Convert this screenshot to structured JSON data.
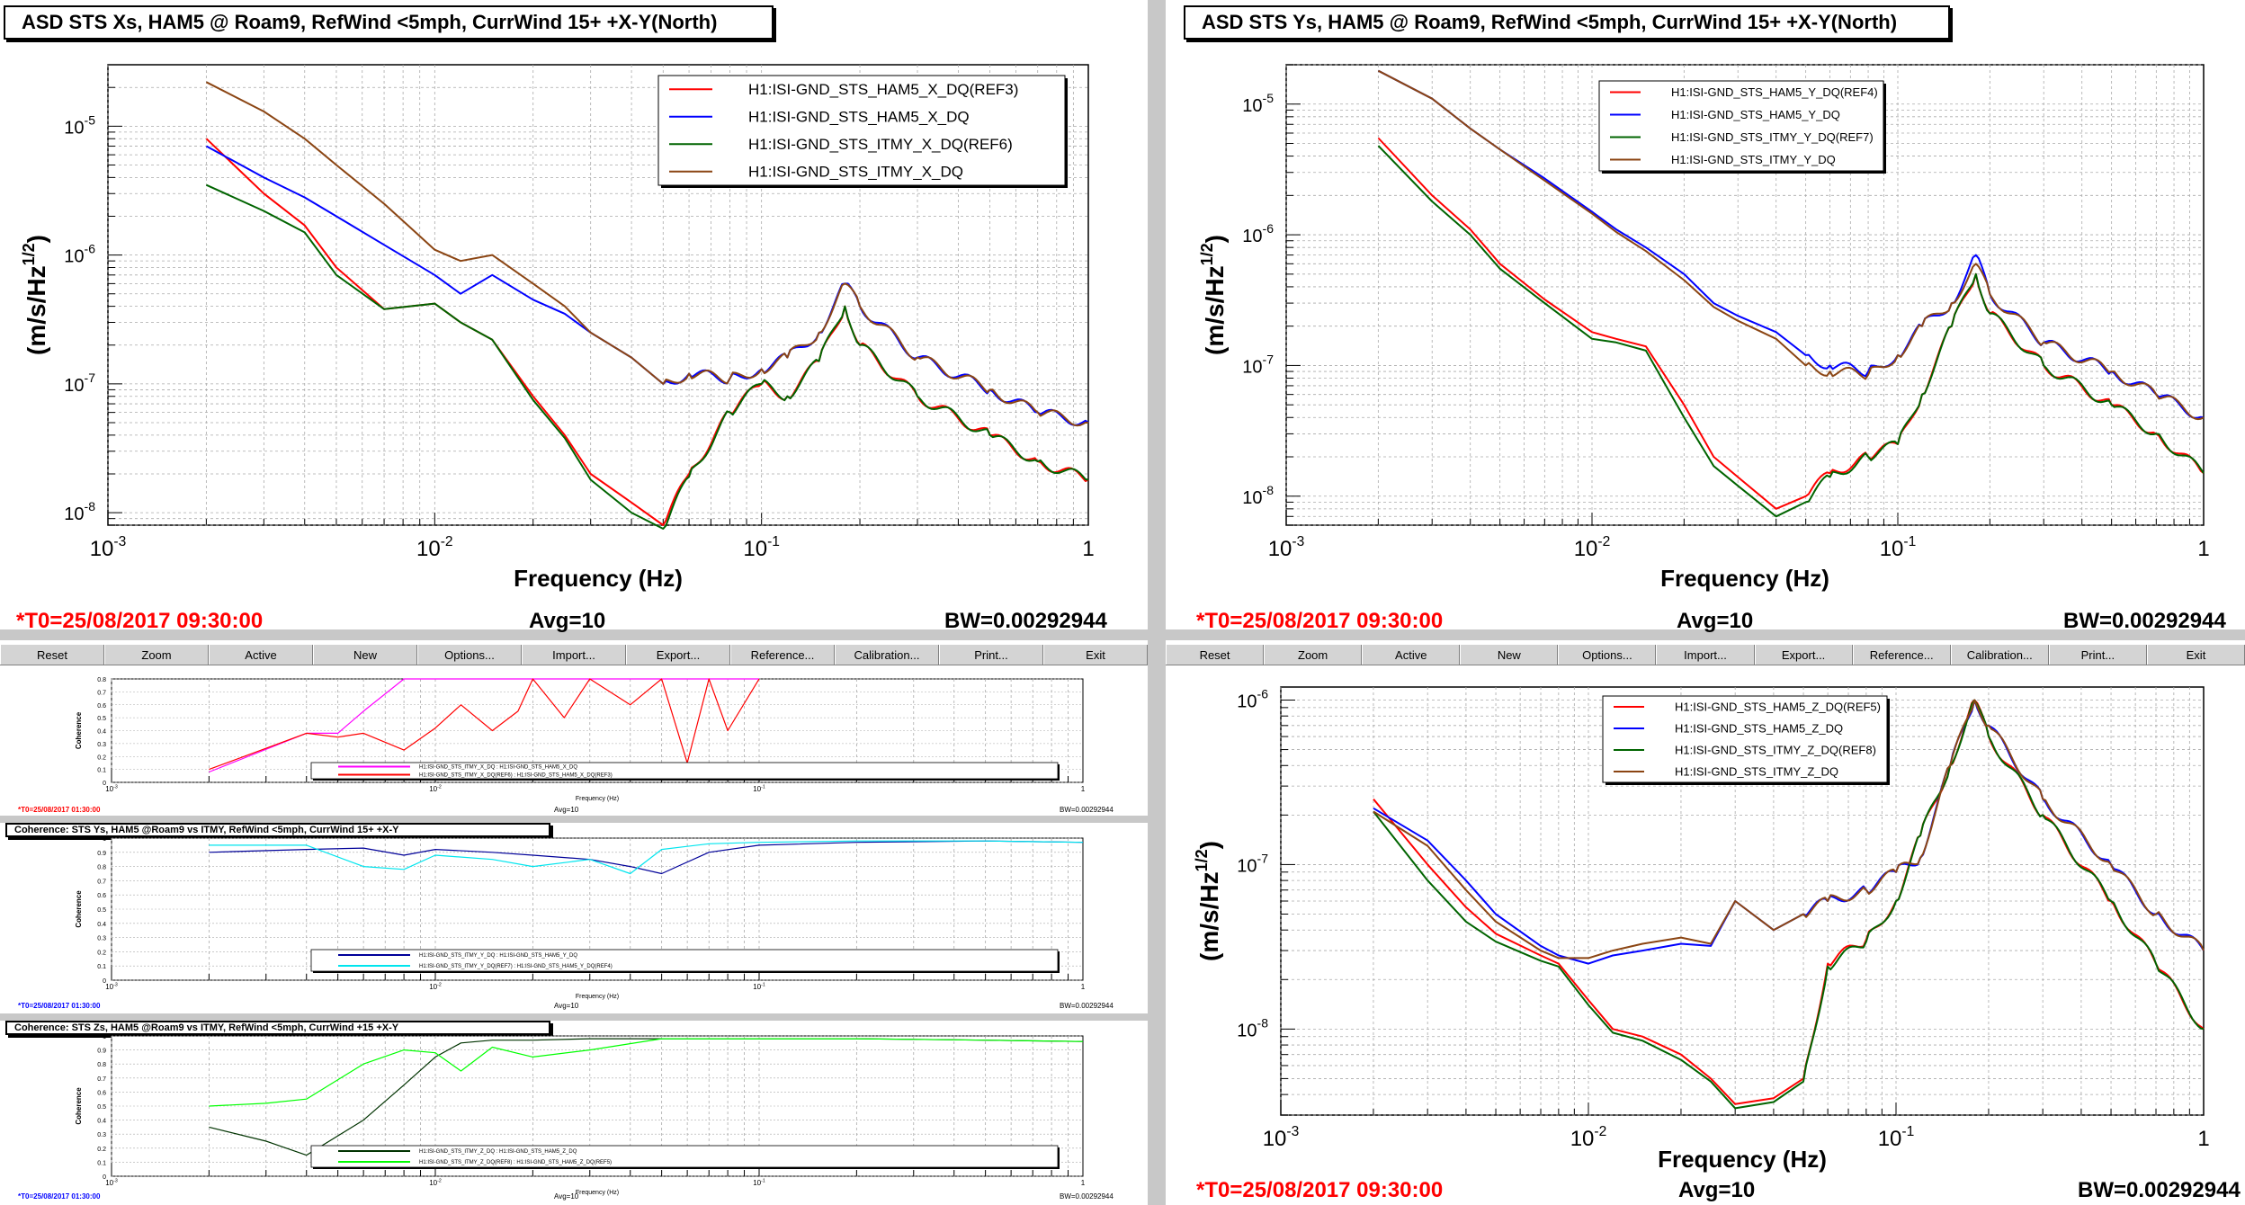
{
  "toolbar": {
    "buttons": [
      "Reset",
      "Zoom",
      "Active",
      "New",
      "Options...",
      "Import...",
      "Export...",
      "Reference...",
      "Calibration...",
      "Print...",
      "Exit"
    ]
  },
  "colors": {
    "red": "#ff0000",
    "blue": "#0000ff",
    "green": "#006400",
    "brown": "#8b4513",
    "magenta": "#ff00ff",
    "cyan": "#00e5ee",
    "lime": "#00ff00",
    "darkblue": "#000099"
  },
  "footer": {
    "t0_main": "*T0=25/08/2017 09:30:00",
    "avg": "Avg=10",
    "bw": "BW=0.00292944",
    "t0_small": "*T0=25/08/2017 01:30:00",
    "bw_small": "BW=0.00292944"
  },
  "panels": {
    "xs": {
      "title": "ASD STS Xs, HAM5 @ Roam9, RefWind <5mph, CurrWind 15+ +X-Y(North)",
      "xlabel": "Frequency (Hz)",
      "ylabel": "(m/s/Hz^1/2)",
      "legend": [
        "H1:ISI-GND_STS_HAM5_X_DQ(REF3)",
        "H1:ISI-GND_STS_HAM5_X_DQ",
        "H1:ISI-GND_STS_ITMY_X_DQ(REF6)",
        "H1:ISI-GND_STS_ITMY_X_DQ"
      ]
    },
    "ys": {
      "title": "ASD STS Ys, HAM5 @ Roam9, RefWind <5mph, CurrWind 15+ +X-Y(North)",
      "xlabel": "Frequency (Hz)",
      "ylabel": "(m/s/Hz^1/2)",
      "legend": [
        "H1:ISI-GND_STS_HAM5_Y_DQ(REF4)",
        "H1:ISI-GND_STS_HAM5_Y_DQ",
        "H1:ISI-GND_STS_ITMY_Y_DQ(REF7)",
        "H1:ISI-GND_STS_ITMY_Y_DQ"
      ]
    },
    "zs": {
      "title": "",
      "xlabel": "Frequency (Hz)",
      "ylabel": "(m/s/Hz^1/2)",
      "legend": [
        "H1:ISI-GND_STS_HAM5_Z_DQ(REF5)",
        "H1:ISI-GND_STS_HAM5_Z_DQ",
        "H1:ISI-GND_STS_ITMY_Z_DQ(REF8)",
        "H1:ISI-GND_STS_ITMY_Z_DQ"
      ]
    },
    "coh_x": {
      "ylabel": "Coherence",
      "xlabel": "Frequency (Hz)",
      "legend": [
        "H1:ISI-GND_STS_ITMY_X_DQ : H1:ISI-GND_STS_HAM5_X_DQ",
        "H1:ISI-GND_STS_ITMY_X_DQ(REF6) : H1:ISI-GND_STS_HAM5_X_DQ(REF3)"
      ]
    },
    "coh_y": {
      "title": "Coherence: STS Ys, HAM5 @Roam9 vs ITMY, RefWind <5mph, CurrWind 15+ +X-Y",
      "ylabel": "Coherence",
      "xlabel": "Frequency (Hz)",
      "legend": [
        "H1:ISI-GND_STS_ITMY_Y_DQ : H1:ISI-GND_STS_HAM5_Y_DQ",
        "H1:ISI-GND_STS_ITMY_Y_DQ(REF7) : H1:ISI-GND_STS_HAM5_Y_DQ(REF4)"
      ]
    },
    "coh_z": {
      "title": "Coherence: STS Zs, HAM5 @Roam9 vs ITMY, RefWind <5mph, CurrWind +15 +X-Y",
      "ylabel": "Coherence",
      "xlabel": "Frequency (Hz)",
      "legend": [
        "H1:ISI-GND_STS_ITMY_Z_DQ : H1:ISI-GND_STS_HAM5_Z_DQ",
        "H1:ISI-GND_STS_ITMY_Z_DQ(REF8) : H1:ISI-GND_STS_HAM5_Z_DQ(REF5)"
      ]
    }
  },
  "chart_data": [
    {
      "id": "xs",
      "type": "line",
      "xscale": "log",
      "yscale": "log",
      "xlim": [
        0.001,
        1
      ],
      "ylim": [
        8e-09,
        3e-05
      ],
      "x": [
        0.002,
        0.003,
        0.004,
        0.005,
        0.007,
        0.01,
        0.012,
        0.015,
        0.02,
        0.025,
        0.03,
        0.04,
        0.05,
        0.06,
        0.08,
        0.1,
        0.12,
        0.15,
        0.18,
        0.2,
        0.3,
        0.5,
        0.7,
        1
      ],
      "yticks": [
        1e-08,
        1e-07,
        1e-06,
        1e-05
      ],
      "series": [
        {
          "name": "H1:ISI-GND_STS_HAM5_X_DQ(REF3)",
          "color": "red",
          "values": [
            8e-06,
            3e-06,
            1.7e-06,
            8e-07,
            3.8e-07,
            4.2e-07,
            3e-07,
            2.2e-07,
            8e-08,
            4e-08,
            2e-08,
            1.2e-08,
            8e-09,
            2e-08,
            6e-08,
            1e-07,
            8e-08,
            1.5e-07,
            4e-07,
            2e-07,
            8e-08,
            4e-08,
            2.5e-08,
            1.8e-08
          ]
        },
        {
          "name": "H1:ISI-GND_STS_HAM5_X_DQ",
          "color": "blue",
          "values": [
            7e-06,
            4e-06,
            2.8e-06,
            2e-06,
            1.2e-06,
            7e-07,
            5e-07,
            7e-07,
            4.5e-07,
            3.5e-07,
            2.5e-07,
            1.6e-07,
            1e-07,
            1.2e-07,
            1.1e-07,
            1.3e-07,
            1.6e-07,
            2.5e-07,
            6e-07,
            4e-07,
            1.6e-07,
            9e-08,
            6e-08,
            5e-08
          ]
        },
        {
          "name": "H1:ISI-GND_STS_ITMY_X_DQ(REF6)",
          "color": "green",
          "values": [
            3.5e-06,
            2.2e-06,
            1.5e-06,
            7e-07,
            3.8e-07,
            4.2e-07,
            3e-07,
            2.2e-07,
            7.5e-08,
            3.8e-08,
            1.8e-08,
            1e-08,
            7.5e-09,
            1.9e-08,
            6e-08,
            1e-07,
            8e-08,
            1.5e-07,
            4e-07,
            2e-07,
            8e-08,
            4e-08,
            2.5e-08,
            1.8e-08
          ]
        },
        {
          "name": "H1:ISI-GND_STS_ITMY_X_DQ",
          "color": "brown",
          "values": [
            2.2e-05,
            1.3e-05,
            8e-06,
            5e-06,
            2.5e-06,
            1.1e-06,
            9e-07,
            1e-06,
            6e-07,
            4e-07,
            2.5e-07,
            1.6e-07,
            1e-07,
            1.2e-07,
            1.1e-07,
            1.3e-07,
            1.6e-07,
            2.5e-07,
            6e-07,
            4e-07,
            1.6e-07,
            9e-08,
            6e-08,
            5e-08
          ]
        }
      ]
    },
    {
      "id": "ys",
      "type": "line",
      "xscale": "log",
      "yscale": "log",
      "xlim": [
        0.001,
        1
      ],
      "ylim": [
        6e-09,
        2e-05
      ],
      "x": [
        0.002,
        0.003,
        0.004,
        0.005,
        0.007,
        0.01,
        0.012,
        0.015,
        0.02,
        0.025,
        0.03,
        0.04,
        0.05,
        0.06,
        0.08,
        0.1,
        0.12,
        0.15,
        0.18,
        0.2,
        0.3,
        0.5,
        0.7,
        1
      ],
      "yticks": [
        1e-08,
        1e-07,
        1e-06,
        1e-05
      ],
      "series": [
        {
          "name": "H1:ISI-GND_STS_HAM5_Y_DQ(REF4)",
          "color": "red",
          "values": [
            5.5e-06,
            2e-06,
            1.1e-06,
            6e-07,
            3.2e-07,
            1.8e-07,
            1.6e-07,
            1.4e-07,
            5e-08,
            2e-08,
            1.4e-08,
            8e-09,
            1e-08,
            1.5e-08,
            2e-08,
            2.5e-08,
            6e-08,
            2e-07,
            5e-07,
            2.5e-07,
            1e-07,
            5e-08,
            3e-08,
            1.5e-08
          ]
        },
        {
          "name": "H1:ISI-GND_STS_HAM5_Y_DQ",
          "color": "blue",
          "values": [
            1.8e-05,
            1.1e-05,
            6.5e-06,
            4.5e-06,
            2.7e-06,
            1.5e-06,
            1.1e-06,
            8e-07,
            5e-07,
            3e-07,
            2.4e-07,
            1.8e-07,
            1.2e-07,
            1e-07,
            9e-08,
            1.2e-07,
            2e-07,
            3e-07,
            7e-07,
            3.5e-07,
            1.5e-07,
            9e-08,
            6e-08,
            4e-08
          ]
        },
        {
          "name": "H1:ISI-GND_STS_ITMY_Y_DQ(REF7)",
          "color": "green",
          "values": [
            4.8e-06,
            1.8e-06,
            1e-06,
            5.5e-07,
            3e-07,
            1.6e-07,
            1.5e-07,
            1.3e-07,
            4e-08,
            1.7e-08,
            1.2e-08,
            7e-09,
            9e-09,
            1.4e-08,
            2e-08,
            2.5e-08,
            6e-08,
            2e-07,
            5e-07,
            2.5e-07,
            1e-07,
            5e-08,
            3e-08,
            1.5e-08
          ]
        },
        {
          "name": "H1:ISI-GND_STS_ITMY_Y_DQ",
          "color": "brown",
          "values": [
            1.8e-05,
            1.1e-05,
            6.5e-06,
            4.5e-06,
            2.6e-06,
            1.45e-06,
            1.05e-06,
            7.5e-07,
            4.5e-07,
            2.8e-07,
            2.2e-07,
            1.6e-07,
            1e-07,
            9e-08,
            8.5e-08,
            1.2e-07,
            2e-07,
            3e-07,
            6e-07,
            3.5e-07,
            1.5e-07,
            9e-08,
            6e-08,
            4e-08
          ]
        }
      ]
    },
    {
      "id": "zs",
      "type": "line",
      "xscale": "log",
      "yscale": "log",
      "xlim": [
        0.001,
        1
      ],
      "ylim": [
        3e-09,
        1.2e-06
      ],
      "x": [
        0.002,
        0.003,
        0.004,
        0.005,
        0.007,
        0.008,
        0.01,
        0.012,
        0.015,
        0.02,
        0.025,
        0.03,
        0.04,
        0.05,
        0.06,
        0.08,
        0.1,
        0.12,
        0.15,
        0.18,
        0.2,
        0.3,
        0.5,
        0.7,
        1
      ],
      "yticks": [
        1e-08,
        1e-07,
        1e-06
      ],
      "series": [
        {
          "name": "H1:ISI-GND_STS_HAM5_Z_DQ(REF5)",
          "color": "red",
          "values": [
            2.5e-07,
            1e-07,
            5.5e-08,
            3.8e-08,
            2.8e-08,
            2.5e-08,
            1.5e-08,
            1e-08,
            9e-09,
            7e-09,
            5e-09,
            3.5e-09,
            3.8e-09,
            5e-09,
            2.5e-08,
            3.5e-08,
            6e-08,
            1.5e-07,
            4e-07,
            1e-06,
            6e-07,
            2e-07,
            6e-08,
            2.5e-08,
            1e-08
          ]
        },
        {
          "name": "H1:ISI-GND_STS_HAM5_Z_DQ",
          "color": "blue",
          "values": [
            2.2e-07,
            1.4e-07,
            8e-08,
            5e-08,
            3.2e-08,
            2.8e-08,
            2.5e-08,
            2.8e-08,
            3e-08,
            3.3e-08,
            3.2e-08,
            6e-08,
            4e-08,
            5e-08,
            6e-08,
            7e-08,
            9e-08,
            1.1e-07,
            4e-07,
            1e-06,
            7e-07,
            2.5e-07,
            1e-07,
            5e-08,
            3e-08
          ]
        },
        {
          "name": "H1:ISI-GND_STS_ITMY_Z_DQ(REF8)",
          "color": "green",
          "values": [
            2.1e-07,
            8e-08,
            4.5e-08,
            3.4e-08,
            2.6e-08,
            2.4e-08,
            1.4e-08,
            9.5e-09,
            8.5e-09,
            6.5e-09,
            4.8e-09,
            3.3e-09,
            3.6e-09,
            4.8e-09,
            2.4e-08,
            3.4e-08,
            6e-08,
            1.5e-07,
            4e-07,
            1e-06,
            6e-07,
            2e-07,
            6e-08,
            2.5e-08,
            1e-08
          ]
        },
        {
          "name": "H1:ISI-GND_STS_ITMY_Z_DQ",
          "color": "brown",
          "values": [
            2.1e-07,
            1.3e-07,
            7e-08,
            4.5e-08,
            3e-08,
            2.7e-08,
            2.7e-08,
            3e-08,
            3.3e-08,
            3.6e-08,
            3.3e-08,
            6e-08,
            4e-08,
            5e-08,
            6e-08,
            7e-08,
            9e-08,
            1.1e-07,
            4e-07,
            1e-06,
            7e-07,
            2.5e-07,
            1e-07,
            5e-08,
            3e-08
          ]
        }
      ]
    },
    {
      "id": "coh_x",
      "type": "line",
      "xscale": "log",
      "xlim": [
        0.001,
        1
      ],
      "ylim": [
        0,
        0.8
      ],
      "x": [
        0.002,
        0.004,
        0.005,
        0.006,
        0.008,
        0.01,
        0.012,
        0.015,
        0.018,
        0.02,
        0.025,
        0.03,
        0.04,
        0.05,
        0.06,
        0.07,
        0.08,
        0.1
      ],
      "series": [
        {
          "name": "H1:ISI-GND_STS_ITMY_X_DQ : H1:ISI-GND_STS_HAM5_X_DQ",
          "color": "magenta",
          "values": [
            0.08,
            0.38,
            0.38,
            0.55,
            0.8,
            0.8,
            0.8,
            0.8,
            0.8,
            0.8,
            0.8,
            0.8,
            0.8,
            0.8,
            0.8,
            0.8,
            0.8,
            0.8
          ]
        },
        {
          "name": "H1:ISI-GND_STS_ITMY_X_DQ(REF6) : H1:ISI-GND_STS_HAM5_X_DQ(REF3)",
          "color": "red",
          "values": [
            0.1,
            0.38,
            0.35,
            0.38,
            0.25,
            0.42,
            0.6,
            0.4,
            0.55,
            0.8,
            0.5,
            0.8,
            0.6,
            0.8,
            0.15,
            0.8,
            0.4,
            0.8
          ]
        }
      ]
    },
    {
      "id": "coh_y",
      "type": "line",
      "xscale": "log",
      "xlim": [
        0.001,
        1
      ],
      "ylim": [
        0,
        1
      ],
      "x": [
        0.002,
        0.004,
        0.006,
        0.008,
        0.01,
        0.015,
        0.02,
        0.03,
        0.04,
        0.05,
        0.07,
        0.1,
        0.2,
        0.5,
        1
      ],
      "series": [
        {
          "name": "H1:ISI-GND_STS_ITMY_Y_DQ : H1:ISI-GND_STS_HAM5_Y_DQ",
          "color": "darkblue",
          "values": [
            0.9,
            0.92,
            0.93,
            0.88,
            0.92,
            0.9,
            0.88,
            0.85,
            0.8,
            0.75,
            0.9,
            0.95,
            0.97,
            0.98,
            0.97
          ]
        },
        {
          "name": "H1:ISI-GND_STS_ITMY_Y_DQ(REF7) : H1:ISI-GND_STS_HAM5_Y_DQ(REF4)",
          "color": "cyan",
          "values": [
            0.95,
            0.95,
            0.8,
            0.78,
            0.88,
            0.85,
            0.8,
            0.85,
            0.75,
            0.92,
            0.96,
            0.97,
            0.98,
            0.98,
            0.97
          ]
        }
      ]
    },
    {
      "id": "coh_z",
      "type": "line",
      "xscale": "log",
      "xlim": [
        0.001,
        1
      ],
      "ylim": [
        0,
        1
      ],
      "x": [
        0.002,
        0.003,
        0.004,
        0.006,
        0.008,
        0.01,
        0.012,
        0.015,
        0.02,
        0.03,
        0.05,
        0.1,
        0.2,
        0.5,
        1
      ],
      "series": [
        {
          "name": "H1:ISI-GND_STS_ITMY_Z_DQ : H1:ISI-GND_STS_HAM5_Z_DQ",
          "color": "#003300",
          "values": [
            0.35,
            0.25,
            0.15,
            0.4,
            0.65,
            0.85,
            0.95,
            0.97,
            0.97,
            0.98,
            0.98,
            0.98,
            0.98,
            0.97,
            0.96
          ]
        },
        {
          "name": "H1:ISI-GND_STS_ITMY_Z_DQ(REF8) : H1:ISI-GND_STS_HAM5_Z_DQ(REF5)",
          "color": "lime",
          "values": [
            0.5,
            0.52,
            0.55,
            0.8,
            0.9,
            0.88,
            0.75,
            0.92,
            0.85,
            0.9,
            0.98,
            0.98,
            0.98,
            0.97,
            0.96
          ]
        }
      ]
    }
  ]
}
